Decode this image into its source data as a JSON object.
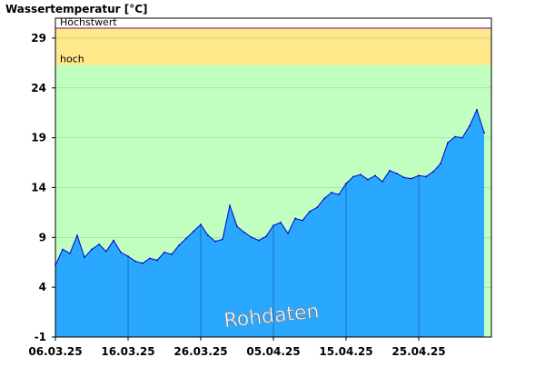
{
  "chart_data": {
    "type": "area",
    "title": "",
    "ylabel": "Wassertemperatur [°C]",
    "xlabel": "",
    "ylim": [
      -1,
      31
    ],
    "xlim": [
      "2025-03-06",
      "2025-05-05"
    ],
    "y_ticks": [
      -1,
      4,
      9,
      14,
      19,
      24,
      29
    ],
    "x_ticks": [
      "06.03.25",
      "16.03.25",
      "26.03.25",
      "05.04.25",
      "15.04.25",
      "25.04.25"
    ],
    "grid": true,
    "bands": [
      {
        "name": "Höchstwert",
        "value": 30.0,
        "color": "#800080"
      },
      {
        "name": "hoch",
        "from": 26.3,
        "to": 30.0,
        "color": "#ffe88a"
      },
      {
        "name": "",
        "from": -1,
        "to": 26.3,
        "color": "#c0ffc0"
      }
    ],
    "watermark": "Rohdaten",
    "colors": {
      "fill": "#2aa8ff",
      "line": "#0000cc",
      "grid": "#9ad29a",
      "frame": "#000000"
    },
    "series": [
      {
        "x": [
          "2025-03-06",
          "2025-03-07",
          "2025-03-08",
          "2025-03-09",
          "2025-03-10",
          "2025-03-11",
          "2025-03-12",
          "2025-03-13",
          "2025-03-14",
          "2025-03-15",
          "2025-03-16",
          "2025-03-17",
          "2025-03-18",
          "2025-03-19",
          "2025-03-20",
          "2025-03-21",
          "2025-03-22",
          "2025-03-23",
          "2025-03-24",
          "2025-03-25",
          "2025-03-26",
          "2025-03-27",
          "2025-03-28",
          "2025-03-29",
          "2025-03-30",
          "2025-03-31",
          "2025-04-01",
          "2025-04-02",
          "2025-04-03",
          "2025-04-04",
          "2025-04-05",
          "2025-04-06",
          "2025-04-07",
          "2025-04-08",
          "2025-04-09",
          "2025-04-10",
          "2025-04-11",
          "2025-04-12",
          "2025-04-13",
          "2025-04-14",
          "2025-04-15",
          "2025-04-16",
          "2025-04-17",
          "2025-04-18",
          "2025-04-19",
          "2025-04-20",
          "2025-04-21",
          "2025-04-22",
          "2025-04-23",
          "2025-04-24",
          "2025-04-25",
          "2025-04-26",
          "2025-04-27",
          "2025-04-28",
          "2025-04-29",
          "2025-04-30",
          "2025-05-01",
          "2025-05-02",
          "2025-05-03",
          "2025-05-04"
        ],
        "values": [
          6.2,
          7.8,
          7.4,
          9.2,
          7.0,
          7.8,
          8.3,
          7.6,
          8.7,
          7.5,
          7.1,
          6.6,
          6.4,
          6.9,
          6.7,
          7.5,
          7.3,
          8.2,
          8.9,
          9.6,
          10.3,
          9.2,
          8.6,
          8.8,
          12.2,
          10.1,
          9.5,
          9.0,
          8.7,
          9.1,
          10.2,
          10.5,
          9.4,
          10.9,
          10.7,
          11.6,
          12.0,
          12.9,
          13.5,
          13.3,
          14.4,
          15.1,
          15.3,
          14.8,
          15.2,
          14.6,
          15.7,
          15.4,
          15.0,
          14.9,
          15.2,
          15.1,
          15.6,
          16.4,
          18.5,
          19.1,
          19.0,
          20.2,
          21.8,
          19.5
        ]
      }
    ]
  }
}
